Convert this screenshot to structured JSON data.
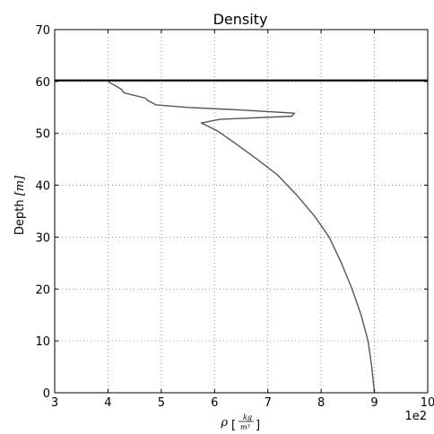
{
  "chart_data": {
    "type": "line",
    "title": "Density",
    "xlabel": "ρ [kg/m³]",
    "ylabel": "Depth [m]",
    "xlim": [
      3,
      10
    ],
    "ylim": [
      0,
      70
    ],
    "x_ticks": [
      "3",
      "4",
      "5",
      "6",
      "7",
      "8",
      "9",
      "10"
    ],
    "y_ticks": [
      "0",
      "10",
      "20",
      "30",
      "40",
      "50",
      "60",
      "70"
    ],
    "x_offset_label": "1e2",
    "grid": true,
    "reference_line": {
      "y": 60.2,
      "color": "#000000"
    },
    "series": [
      {
        "color": "#555555",
        "points": [
          [
            9.0,
            0
          ],
          [
            8.95,
            5
          ],
          [
            8.88,
            10
          ],
          [
            8.75,
            15
          ],
          [
            8.58,
            20
          ],
          [
            8.38,
            25
          ],
          [
            8.15,
            30
          ],
          [
            7.88,
            34
          ],
          [
            7.55,
            38
          ],
          [
            7.18,
            42
          ],
          [
            6.8,
            45
          ],
          [
            6.4,
            48
          ],
          [
            6.05,
            50.5
          ],
          [
            5.75,
            52
          ],
          [
            6.1,
            52.7
          ],
          [
            7.45,
            53.3
          ],
          [
            7.5,
            53.9
          ],
          [
            6.5,
            54.5
          ],
          [
            5.5,
            55.0
          ],
          [
            4.9,
            55.5
          ],
          [
            4.75,
            56.3
          ],
          [
            4.7,
            56.8
          ],
          [
            4.3,
            57.8
          ],
          [
            4.25,
            58.5
          ],
          [
            4.1,
            59.4
          ],
          [
            4.0,
            60.0
          ]
        ]
      }
    ],
    "colors": {
      "axis": "#000000",
      "grid": "#808080",
      "series": "#555555"
    }
  }
}
